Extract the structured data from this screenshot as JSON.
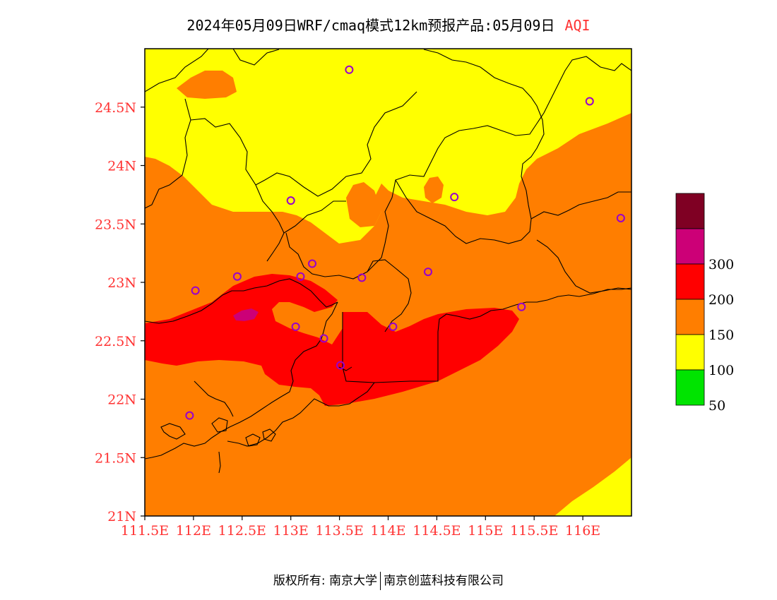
{
  "header": {
    "title": "2024年05月09日WRF/cmaq模式12km预报产品:05月09日",
    "variable": "AQI"
  },
  "map": {
    "lon_range": [
      111.5,
      116.5
    ],
    "lat_range": [
      21.0,
      25.0
    ],
    "x_ticks": [
      {
        "lon": 111.5,
        "label": "111.5E"
      },
      {
        "lon": 112.0,
        "label": "112E"
      },
      {
        "lon": 112.5,
        "label": "112.5E"
      },
      {
        "lon": 113.0,
        "label": "113E"
      },
      {
        "lon": 113.5,
        "label": "113.5E"
      },
      {
        "lon": 114.0,
        "label": "114E"
      },
      {
        "lon": 114.5,
        "label": "114.5E"
      },
      {
        "lon": 115.0,
        "label": "115E"
      },
      {
        "lon": 115.5,
        "label": "115.5E"
      },
      {
        "lon": 116.0,
        "label": "116E"
      }
    ],
    "y_ticks": [
      {
        "lat": 21.0,
        "label": "21N"
      },
      {
        "lat": 21.5,
        "label": "21.5N"
      },
      {
        "lat": 22.0,
        "label": "22N"
      },
      {
        "lat": 22.5,
        "label": "22.5N"
      },
      {
        "lat": 23.0,
        "label": "23N"
      },
      {
        "lat": 23.5,
        "label": "23.5N"
      },
      {
        "lat": 24.0,
        "label": "24N"
      },
      {
        "lat": 24.5,
        "label": "24.5N"
      }
    ],
    "stations": [
      {
        "lon": 113.6,
        "lat": 24.82
      },
      {
        "lon": 116.07,
        "lat": 24.55
      },
      {
        "lon": 113.0,
        "lat": 23.7
      },
      {
        "lon": 114.68,
        "lat": 23.73
      },
      {
        "lon": 116.39,
        "lat": 23.55
      },
      {
        "lon": 113.22,
        "lat": 23.16
      },
      {
        "lon": 112.45,
        "lat": 23.05
      },
      {
        "lon": 113.1,
        "lat": 23.05
      },
      {
        "lon": 113.73,
        "lat": 23.04
      },
      {
        "lon": 114.41,
        "lat": 23.09
      },
      {
        "lon": 112.02,
        "lat": 22.93
      },
      {
        "lon": 113.05,
        "lat": 22.62
      },
      {
        "lon": 114.05,
        "lat": 22.62
      },
      {
        "lon": 113.34,
        "lat": 22.52
      },
      {
        "lon": 113.51,
        "lat": 22.29
      },
      {
        "lon": 115.37,
        "lat": 22.79
      },
      {
        "lon": 111.96,
        "lat": 21.86
      }
    ]
  },
  "legend": {
    "levels": [
      {
        "label": "",
        "color": "#7f0023"
      },
      {
        "label": "300",
        "color": "#cc0077"
      },
      {
        "label": "200",
        "color": "#ff0000"
      },
      {
        "label": "150",
        "color": "#ff7e00"
      },
      {
        "label": "100",
        "color": "#ffff00"
      },
      {
        "label": "50",
        "color": "#00e400"
      }
    ]
  },
  "colors": {
    "yellow": "#ffff00",
    "orange": "#ff7e00",
    "red": "#ff0000",
    "purple": "#cc0077",
    "station": "#9900cc",
    "tick_label": "#ff3333"
  },
  "footer": {
    "left": "版权所有: 南京大学",
    "right": "南京创蓝科技有限公司"
  }
}
